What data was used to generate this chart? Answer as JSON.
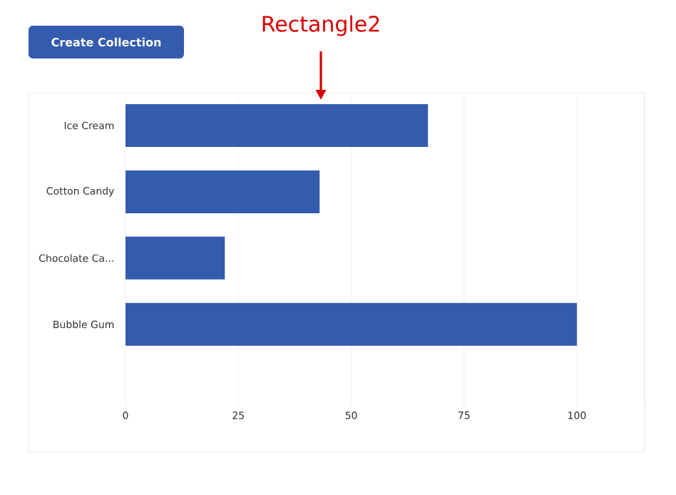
{
  "chart_data": {
    "type": "bar",
    "orientation": "horizontal",
    "categories": [
      "Ice Cream",
      "Cotton Candy",
      "Chocolate Ca...",
      "Bubble Gum"
    ],
    "values": [
      67,
      43,
      22,
      100
    ],
    "color": "#345cae",
    "xlim": [
      0,
      115
    ],
    "xticks": [
      0,
      25,
      50,
      75,
      100
    ],
    "grid": "x",
    "annotations": [
      "Create Collection",
      "Rectangle2"
    ]
  }
}
